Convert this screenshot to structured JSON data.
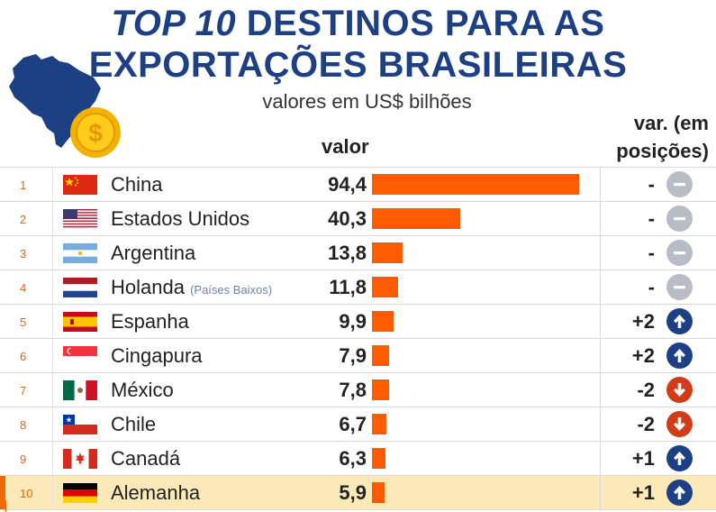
{
  "title": {
    "prefix": "TOP 10",
    "rest": " DESTINOS PARA AS",
    "line2": "EXPORTAÇÕES BRASILEIRAS"
  },
  "subtitle": "valores em US$ bilhões",
  "columns": {
    "valor": "valor",
    "var_line1": "var. (em",
    "var_line2": "posições)"
  },
  "colors": {
    "title": "#1d3f84",
    "bar": "#ff5a00",
    "up": "#1d3f84",
    "down": "#d03c18",
    "neutral": "#b8bcc4",
    "highlight": "#fbeab8"
  },
  "rows": [
    {
      "rank": "1",
      "country": "China",
      "note": "",
      "value": "94,4",
      "change": "-",
      "direction": "neutral",
      "flag": "china-flag-icon"
    },
    {
      "rank": "2",
      "country": "Estados Unidos",
      "note": "",
      "value": "40,3",
      "change": "-",
      "direction": "neutral",
      "flag": "usa-flag-icon"
    },
    {
      "rank": "3",
      "country": "Argentina",
      "note": "",
      "value": "13,8",
      "change": "-",
      "direction": "neutral",
      "flag": "argentina-flag-icon"
    },
    {
      "rank": "4",
      "country": "Holanda",
      "note": "(Países Baixos)",
      "value": "11,8",
      "change": "-",
      "direction": "neutral",
      "flag": "netherlands-flag-icon"
    },
    {
      "rank": "5",
      "country": "Espanha",
      "note": "",
      "value": "9,9",
      "change": "+2",
      "direction": "up",
      "flag": "spain-flag-icon"
    },
    {
      "rank": "6",
      "country": "Cingapura",
      "note": "",
      "value": "7,9",
      "change": "+2",
      "direction": "up",
      "flag": "singapore-flag-icon"
    },
    {
      "rank": "7",
      "country": "México",
      "note": "",
      "value": "7,8",
      "change": "-2",
      "direction": "down",
      "flag": "mexico-flag-icon"
    },
    {
      "rank": "8",
      "country": "Chile",
      "note": "",
      "value": "6,7",
      "change": "-2",
      "direction": "down",
      "flag": "chile-flag-icon"
    },
    {
      "rank": "9",
      "country": "Canadá",
      "note": "",
      "value": "6,3",
      "change": "+1",
      "direction": "up",
      "flag": "canada-flag-icon"
    },
    {
      "rank": "10",
      "country": "Alemanha",
      "note": "",
      "value": "5,9",
      "change": "+1",
      "direction": "up",
      "flag": "germany-flag-icon"
    }
  ],
  "chart_data": {
    "type": "bar",
    "title": "TOP 10 DESTINOS PARA AS EXPORTAÇÕES BRASILEIRAS",
    "subtitle": "valores em US$ bilhões",
    "orientation": "horizontal",
    "categories": [
      "China",
      "Estados Unidos",
      "Argentina",
      "Holanda",
      "Espanha",
      "Cingapura",
      "México",
      "Chile",
      "Canadá",
      "Alemanha"
    ],
    "values": [
      94.4,
      40.3,
      13.8,
      11.8,
      9.9,
      7.9,
      7.8,
      6.7,
      6.3,
      5.9
    ],
    "variation": [
      "-",
      "-",
      "-",
      "-",
      "+2",
      "+2",
      "-2",
      "-2",
      "+1",
      "+1"
    ],
    "xlim": [
      0,
      94.4
    ],
    "grid": false,
    "legend": "none"
  }
}
